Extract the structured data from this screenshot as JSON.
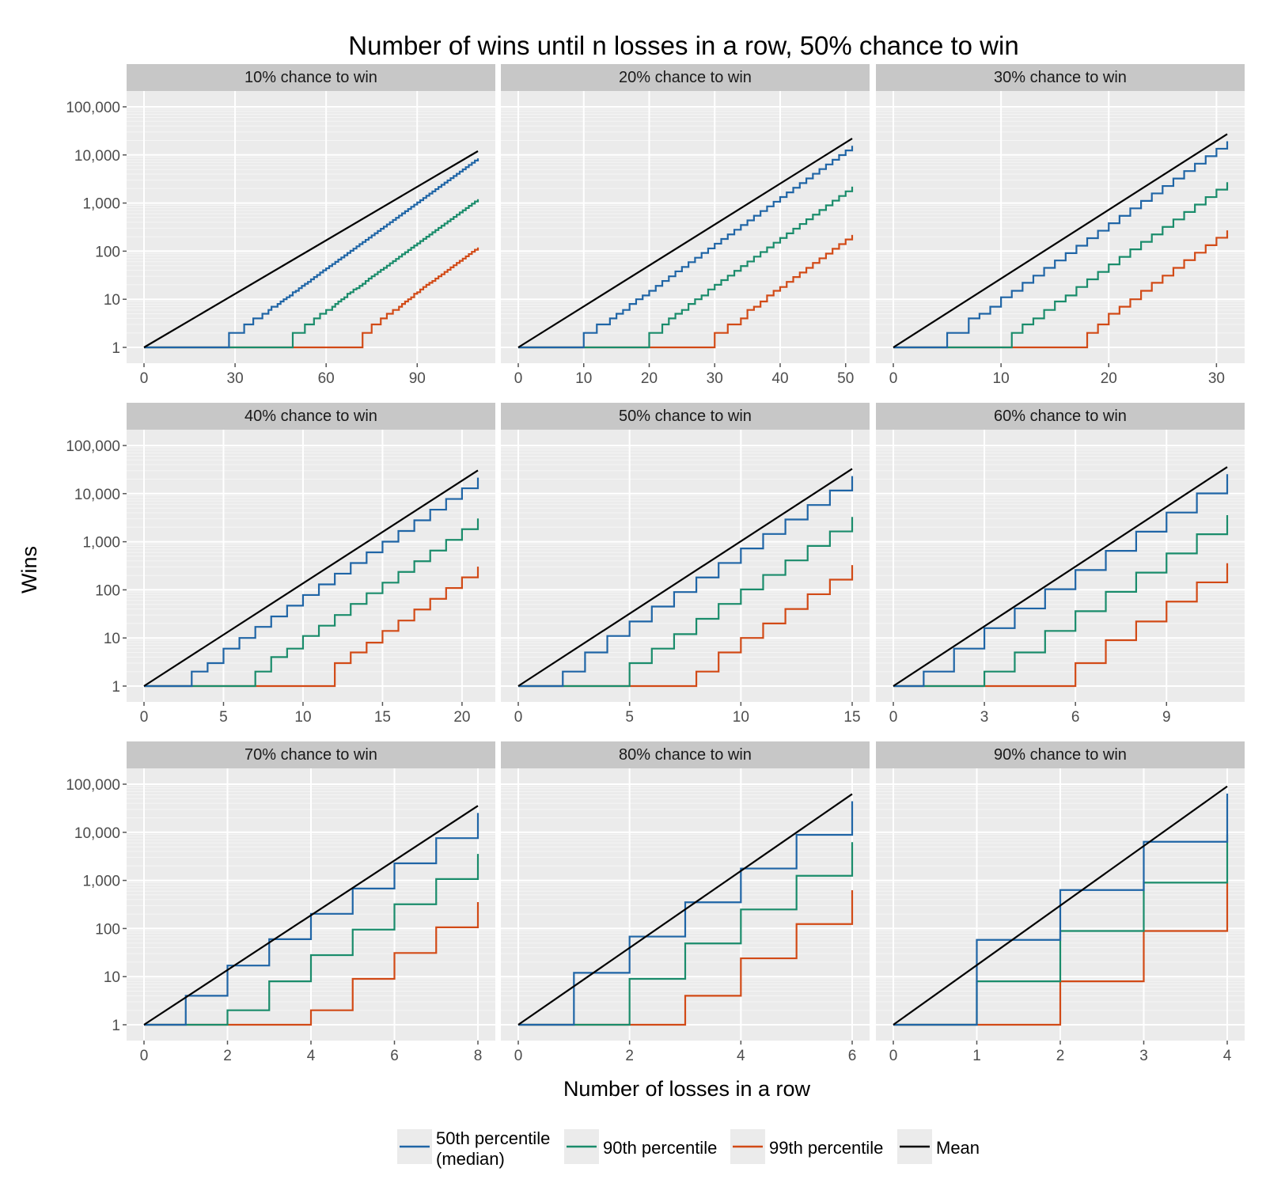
{
  "chart_data": {
    "type": "line",
    "title": "Number of wins until n losses in a row, 50% chance to win",
    "xlabel": "Number of losses in a row",
    "ylabel": "Wins",
    "y_scale": "log10",
    "ylim": [
      1,
      100000
    ],
    "y_ticks": [
      1,
      10,
      100,
      1000,
      10000,
      100000
    ],
    "y_tick_labels": [
      "1",
      "10",
      "100",
      "1,000",
      "10,000",
      "100,000"
    ],
    "grid": true,
    "layout": "3x3 facets",
    "legend_position": "bottom",
    "series": [
      {
        "key": "p50",
        "name": "50th percentile (median)",
        "color": "#1f65a6"
      },
      {
        "key": "p90",
        "name": "90th percentile",
        "color": "#1a8c6b"
      },
      {
        "key": "p99",
        "name": "99th percentile",
        "color": "#d24a16"
      },
      {
        "key": "mean",
        "name": "Mean",
        "color": "#000000"
      }
    ],
    "panels": [
      {
        "label": "10% chance to win",
        "p": 0.1,
        "x_max": 110,
        "x_ticks": [
          0,
          30,
          60,
          90
        ]
      },
      {
        "label": "20% chance to win",
        "p": 0.2,
        "x_max": 51,
        "x_ticks": [
          0,
          10,
          20,
          30,
          40,
          50
        ]
      },
      {
        "label": "30% chance to win",
        "p": 0.3,
        "x_max": 31,
        "x_ticks": [
          0,
          10,
          20,
          30
        ]
      },
      {
        "label": "40% chance to win",
        "p": 0.4,
        "x_max": 21,
        "x_ticks": [
          0,
          5,
          10,
          15,
          20
        ]
      },
      {
        "label": "50% chance to win",
        "p": 0.5,
        "x_max": 15,
        "x_ticks": [
          0,
          5,
          10,
          15
        ]
      },
      {
        "label": "60% chance to win",
        "p": 0.6,
        "x_max": 11,
        "x_ticks": [
          0,
          3,
          6,
          9
        ]
      },
      {
        "label": "70% chance to win",
        "p": 0.7,
        "x_max": 8,
        "x_ticks": [
          0,
          2,
          4,
          6,
          8
        ]
      },
      {
        "label": "80% chance to win",
        "p": 0.8,
        "x_max": 6,
        "x_ticks": [
          0,
          2,
          4,
          6
        ]
      },
      {
        "label": "90% chance to win",
        "p": 0.9,
        "x_max": 4,
        "x_ticks": [
          0,
          1,
          2,
          3,
          4
        ]
      }
    ]
  },
  "legend": {
    "items": [
      {
        "line1": "50th percentile",
        "line2": "(median)",
        "color": "#1f65a6"
      },
      {
        "line1": "90th percentile",
        "line2": "",
        "color": "#1a8c6b"
      },
      {
        "line1": "99th percentile",
        "line2": "",
        "color": "#d24a16"
      },
      {
        "line1": "Mean",
        "line2": "",
        "color": "#000000"
      }
    ]
  }
}
